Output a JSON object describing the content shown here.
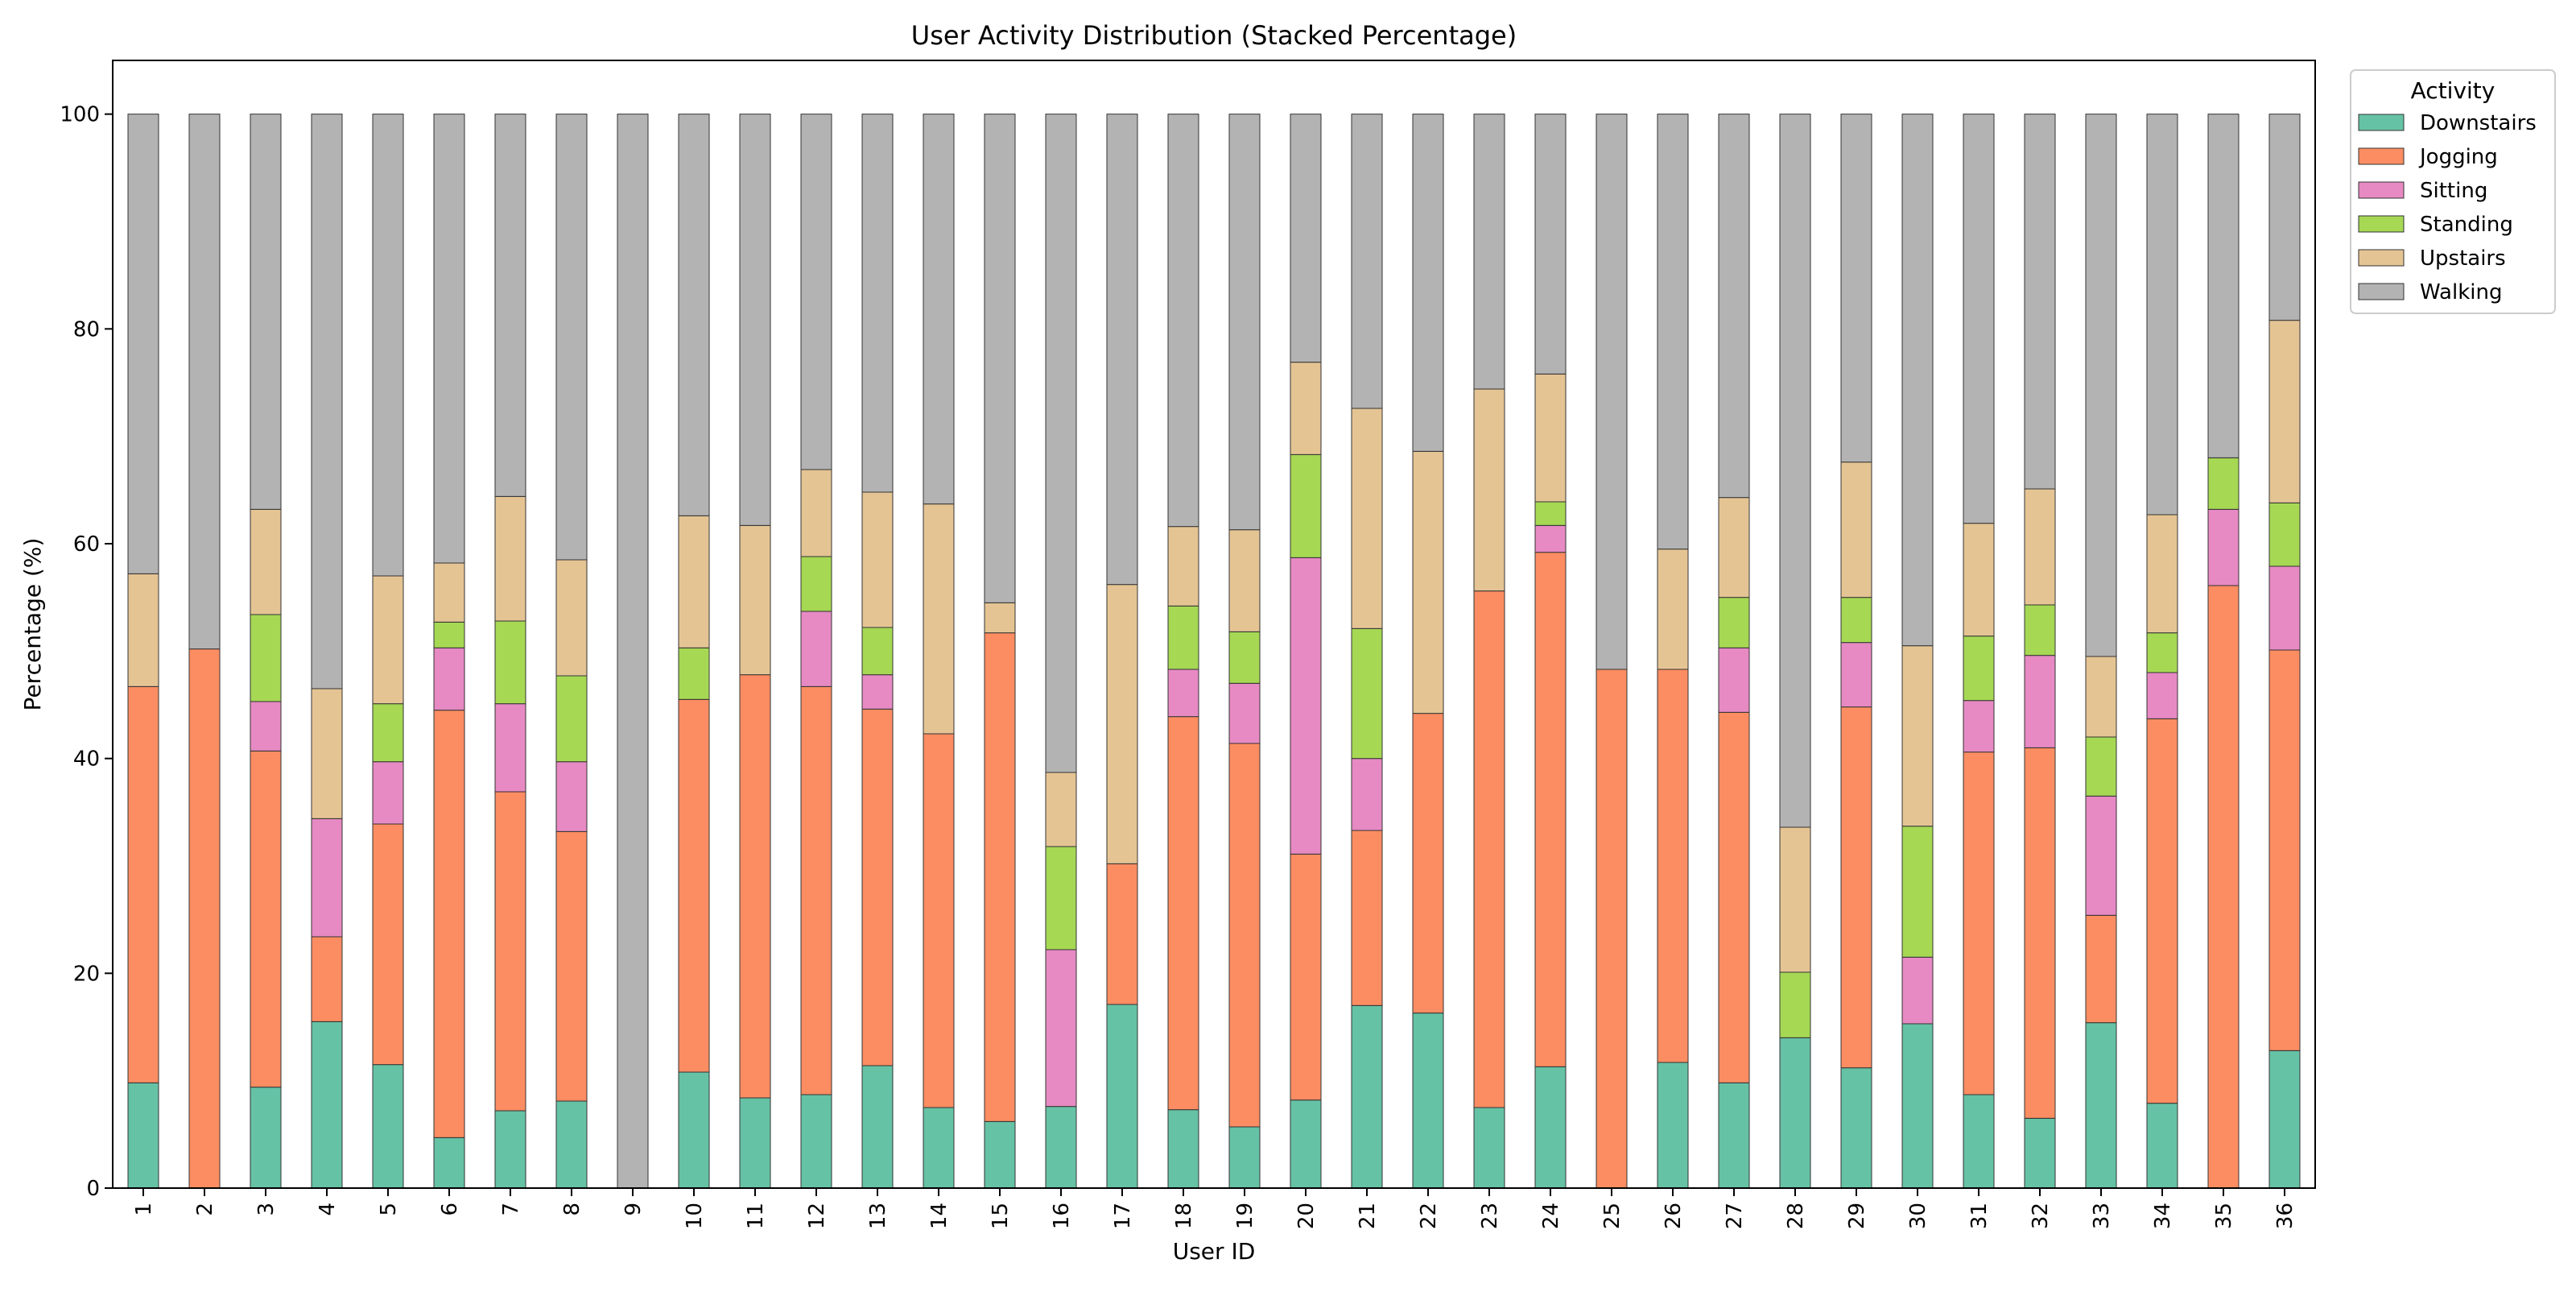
{
  "chart_data": {
    "type": "bar",
    "stacked": true,
    "title": "User Activity Distribution (Stacked Percentage)",
    "xlabel": "User ID",
    "ylabel": "Percentage (%)",
    "ylim": [
      0,
      105
    ],
    "yticks": [
      0,
      20,
      40,
      60,
      80,
      100
    ],
    "grid": false,
    "legend": {
      "title": "Activity",
      "placement": "outside top-right"
    },
    "categories": [
      "1",
      "2",
      "3",
      "4",
      "5",
      "6",
      "7",
      "8",
      "9",
      "10",
      "11",
      "12",
      "13",
      "14",
      "15",
      "16",
      "17",
      "18",
      "19",
      "20",
      "21",
      "22",
      "23",
      "24",
      "25",
      "26",
      "27",
      "28",
      "29",
      "30",
      "31",
      "32",
      "33",
      "34",
      "35",
      "36"
    ],
    "series": [
      {
        "name": "Downstairs",
        "color": "#66c2a5",
        "values": [
          9.8,
          0,
          9.4,
          15.5,
          11.5,
          4.7,
          7.2,
          8.1,
          0,
          10.8,
          8.4,
          8.7,
          11.4,
          7.5,
          6.2,
          7.6,
          17.1,
          7.3,
          5.7,
          8.2,
          17.0,
          16.3,
          7.5,
          11.3,
          0,
          11.7,
          9.8,
          14.0,
          11.2,
          15.3,
          8.7,
          6.5,
          15.4,
          7.9,
          0,
          12.8
        ]
      },
      {
        "name": "Jogging",
        "color": "#fc8d62",
        "values": [
          36.9,
          50.2,
          31.3,
          7.9,
          22.4,
          39.8,
          29.7,
          25.1,
          0,
          34.7,
          39.4,
          38.0,
          33.2,
          34.8,
          45.5,
          0,
          13.1,
          36.6,
          35.7,
          22.9,
          16.3,
          27.9,
          48.1,
          47.9,
          48.3,
          36.6,
          34.5,
          0,
          33.6,
          0,
          31.9,
          34.5,
          10.0,
          35.8,
          56.1,
          37.3
        ]
      },
      {
        "name": "Sitting",
        "color": "#e78ac3",
        "values": [
          0,
          0,
          4.6,
          11.0,
          5.8,
          5.8,
          8.2,
          6.5,
          0,
          0,
          0,
          7.0,
          3.2,
          0,
          0,
          14.6,
          0,
          4.4,
          5.6,
          27.6,
          6.7,
          0,
          0,
          2.5,
          0,
          0,
          6.0,
          0,
          6.0,
          6.2,
          4.8,
          8.6,
          11.1,
          4.3,
          7.1,
          7.8
        ]
      },
      {
        "name": "Standing",
        "color": "#a6d854",
        "values": [
          0,
          0,
          8.1,
          0,
          5.4,
          2.4,
          7.7,
          8.0,
          0,
          4.8,
          0,
          5.1,
          4.4,
          0,
          0,
          9.6,
          0,
          5.9,
          4.8,
          9.6,
          12.1,
          0,
          0,
          2.2,
          0,
          0,
          4.7,
          6.1,
          4.2,
          12.2,
          6.0,
          4.7,
          5.5,
          3.7,
          4.8,
          5.9
        ]
      },
      {
        "name": "Upstairs",
        "color": "#e5c494",
        "values": [
          10.5,
          0,
          9.8,
          12.1,
          11.9,
          5.5,
          11.6,
          10.8,
          0,
          12.3,
          13.9,
          8.1,
          12.6,
          21.4,
          2.8,
          6.9,
          26.0,
          7.4,
          9.5,
          8.6,
          20.5,
          24.4,
          18.8,
          11.9,
          0,
          11.2,
          9.3,
          13.5,
          12.6,
          16.8,
          10.5,
          10.8,
          7.5,
          11.0,
          0,
          17.0
        ]
      },
      {
        "name": "Walking",
        "color": "#b3b3b3",
        "values": [
          42.8,
          49.8,
          36.8,
          53.5,
          43.0,
          41.8,
          35.6,
          41.5,
          100,
          37.4,
          38.3,
          33.1,
          35.2,
          36.3,
          45.5,
          61.3,
          43.8,
          38.4,
          38.7,
          23.1,
          27.4,
          31.4,
          25.6,
          24.2,
          51.7,
          40.5,
          35.7,
          66.4,
          32.4,
          49.5,
          38.1,
          34.9,
          50.5,
          37.3,
          32.0,
          19.2
        ]
      }
    ]
  }
}
